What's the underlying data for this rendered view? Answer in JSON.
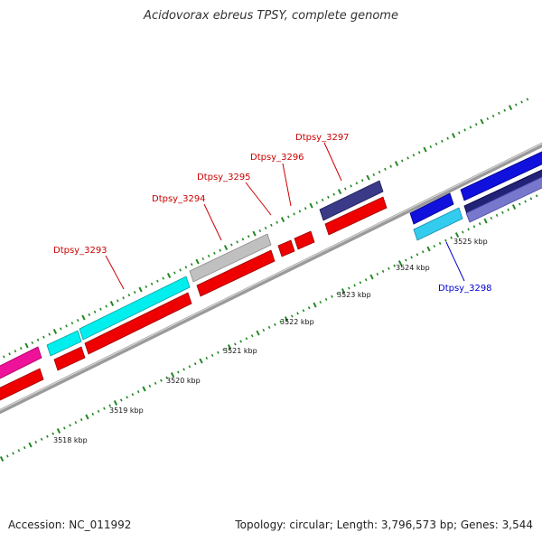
{
  "title": "Acidovorax ebreus TPSY, complete genome",
  "footer": {
    "accession": "Accession: NC_011992",
    "summary": "Topology: circular; Length: 3,796,573 bp; Genes: 3,544"
  },
  "colors": {
    "accent_red": "#ee0000",
    "cyan": "#00eeee",
    "light_blue": "#33ccee",
    "blue": "#1111dd",
    "navy": "#3a3a88",
    "slate": "#7777cc",
    "gray": "#c0c0c0",
    "magenta": "#ee1199",
    "tick_green": "#228822",
    "label_red": "#cc0000",
    "label_blue": "#0000cc"
  },
  "scale_labels": [
    "3518 kbp",
    "3519 kbp",
    "3520 kbp",
    "3521 kbp",
    "3522 kbp",
    "3523 kbp",
    "3524 kbp",
    "3525 kbp"
  ],
  "gene_labels": [
    {
      "name": "Dtpsy_3293",
      "strand": "forward"
    },
    {
      "name": "Dtpsy_3294",
      "strand": "forward"
    },
    {
      "name": "Dtpsy_3295",
      "strand": "forward"
    },
    {
      "name": "Dtpsy_3296",
      "strand": "forward"
    },
    {
      "name": "Dtpsy_3297",
      "strand": "forward"
    },
    {
      "name": "Dtpsy_3298",
      "strand": "reverse"
    }
  ]
}
